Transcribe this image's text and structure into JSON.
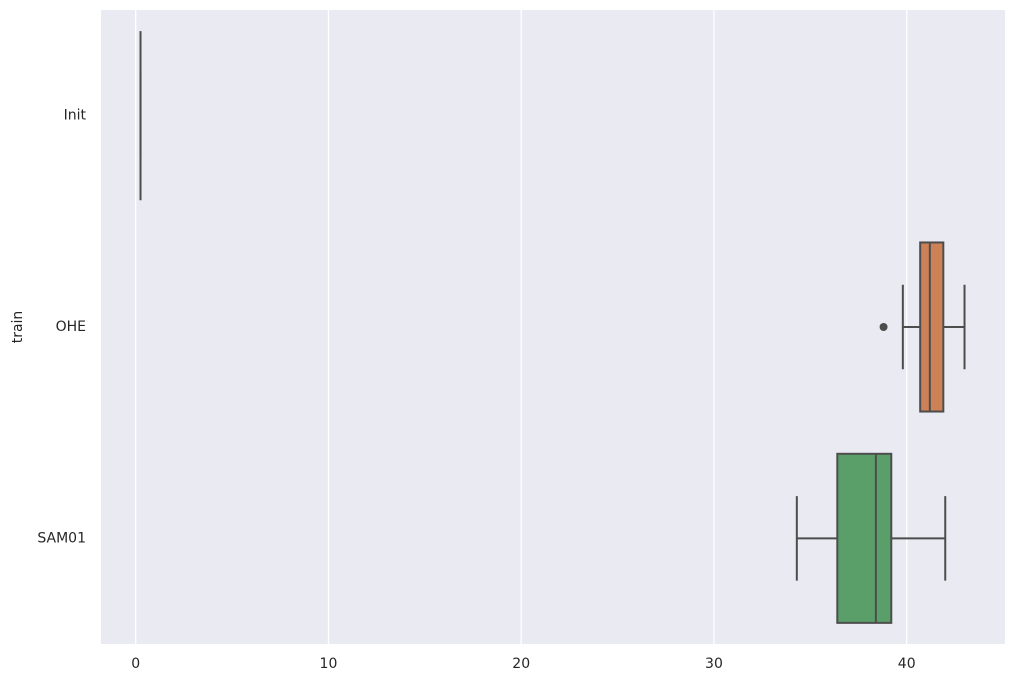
{
  "chart_data": {
    "type": "box",
    "orientation": "horizontal",
    "y_label": "train",
    "categories": [
      "Init",
      "OHE",
      "SAM01"
    ],
    "boxes": [
      {
        "min": 0.25,
        "q1": 0.25,
        "median": 0.25,
        "q3": 0.25,
        "max": 0.25,
        "outliers": [],
        "color": "#4c72b0"
      },
      {
        "min": 39.8,
        "q1": 40.7,
        "median": 41.2,
        "q3": 41.9,
        "max": 43.0,
        "outliers": [
          38.8
        ],
        "color": "#cc8157"
      },
      {
        "min": 34.3,
        "q1": 36.4,
        "median": 38.4,
        "q3": 39.2,
        "max": 42.0,
        "outliers": [],
        "color": "#5a9f6a"
      }
    ],
    "xlim": [
      -1.8,
      45.1
    ],
    "xticks": [
      0,
      10,
      20,
      30,
      40
    ],
    "grid": true
  }
}
